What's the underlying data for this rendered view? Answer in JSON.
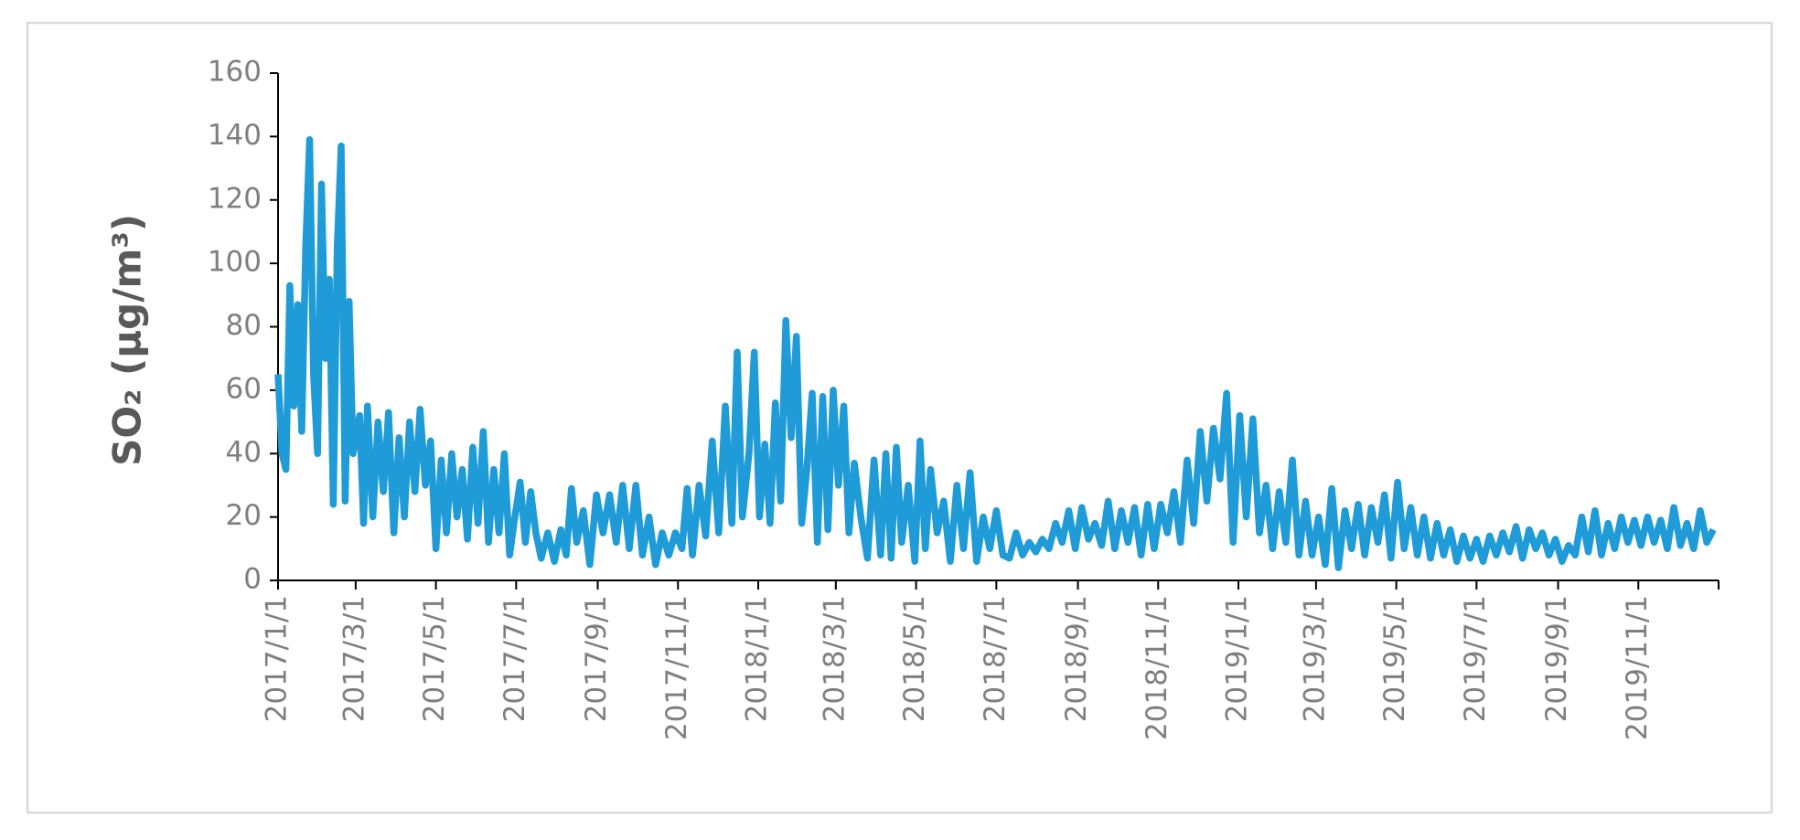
{
  "chart_data": {
    "type": "line",
    "y_label": "SO₂ (μg/m³)",
    "ylim": [
      0,
      160
    ],
    "yticks": [
      0,
      20,
      40,
      60,
      80,
      100,
      120,
      140,
      160
    ],
    "xlim": [
      "2017/1/1",
      "2020/1/1"
    ],
    "xticks": [
      "2017/1/1",
      "2017/3/1",
      "2017/5/1",
      "2017/7/1",
      "2017/9/1",
      "2017/11/1",
      "2018/1/1",
      "2018/3/1",
      "2018/5/1",
      "2018/7/1",
      "2018/9/1",
      "2018/11/1",
      "2019/1/1",
      "2019/3/1",
      "2019/5/1",
      "2019/7/1",
      "2019/9/1",
      "2019/11/1"
    ],
    "x": [
      "2017/1/1",
      "2017/1/4",
      "2017/1/7",
      "2017/1/10",
      "2017/1/13",
      "2017/1/16",
      "2017/1/19",
      "2017/1/22",
      "2017/1/25",
      "2017/1/28",
      "2017/1/31",
      "2017/2/3",
      "2017/2/6",
      "2017/2/9",
      "2017/2/12",
      "2017/2/15",
      "2017/2/18",
      "2017/2/21",
      "2017/2/24",
      "2017/2/27",
      "2017/3/4",
      "2017/3/7",
      "2017/3/10",
      "2017/3/14",
      "2017/3/18",
      "2017/3/22",
      "2017/3/26",
      "2017/3/30",
      "2017/4/3",
      "2017/4/7",
      "2017/4/11",
      "2017/4/15",
      "2017/4/19",
      "2017/4/23",
      "2017/4/27",
      "2017/5/1",
      "2017/5/5",
      "2017/5/9",
      "2017/5/13",
      "2017/5/17",
      "2017/5/21",
      "2017/5/25",
      "2017/5/29",
      "2017/6/2",
      "2017/6/6",
      "2017/6/10",
      "2017/6/14",
      "2017/6/18",
      "2017/6/22",
      "2017/6/26",
      "2017/6/30",
      "2017/7/4",
      "2017/7/8",
      "2017/7/12",
      "2017/7/16",
      "2017/7/20",
      "2017/7/25",
      "2017/7/30",
      "2017/8/4",
      "2017/8/8",
      "2017/8/12",
      "2017/8/16",
      "2017/8/21",
      "2017/8/26",
      "2017/8/31",
      "2017/9/5",
      "2017/9/10",
      "2017/9/15",
      "2017/9/20",
      "2017/9/25",
      "2017/9/30",
      "2017/10/5",
      "2017/10/10",
      "2017/10/15",
      "2017/10/20",
      "2017/10/25",
      "2017/10/30",
      "2017/11/4",
      "2017/11/8",
      "2017/11/12",
      "2017/11/17",
      "2017/11/22",
      "2017/11/27",
      "2017/12/2",
      "2017/12/7",
      "2017/12/12",
      "2017/12/16",
      "2017/12/20",
      "2017/12/25",
      "2017/12/29",
      "2018/1/2",
      "2018/1/6",
      "2018/1/10",
      "2018/1/14",
      "2018/1/18",
      "2018/1/22",
      "2018/1/26",
      "2018/1/30",
      "2018/2/3",
      "2018/2/7",
      "2018/2/11",
      "2018/2/15",
      "2018/2/19",
      "2018/2/23",
      "2018/2/27",
      "2018/3/3",
      "2018/3/7",
      "2018/3/11",
      "2018/3/15",
      "2018/3/20",
      "2018/3/25",
      "2018/3/30",
      "2018/4/4",
      "2018/4/8",
      "2018/4/12",
      "2018/4/16",
      "2018/4/20",
      "2018/4/25",
      "2018/4/30",
      "2018/5/4",
      "2018/5/8",
      "2018/5/12",
      "2018/5/17",
      "2018/5/22",
      "2018/5/27",
      "2018/6/1",
      "2018/6/6",
      "2018/6/11",
      "2018/6/16",
      "2018/6/21",
      "2018/6/26",
      "2018/7/1",
      "2018/7/6",
      "2018/7/11",
      "2018/7/16",
      "2018/7/21",
      "2018/7/26",
      "2018/7/31",
      "2018/8/5",
      "2018/8/10",
      "2018/8/15",
      "2018/8/20",
      "2018/8/25",
      "2018/8/30",
      "2018/9/4",
      "2018/9/9",
      "2018/9/14",
      "2018/9/19",
      "2018/9/24",
      "2018/9/29",
      "2018/10/4",
      "2018/10/9",
      "2018/10/14",
      "2018/10/19",
      "2018/10/24",
      "2018/10/29",
      "2018/11/3",
      "2018/11/8",
      "2018/11/13",
      "2018/11/18",
      "2018/11/23",
      "2018/11/28",
      "2018/12/3",
      "2018/12/8",
      "2018/12/13",
      "2018/12/18",
      "2018/12/23",
      "2018/12/28",
      "2019/1/2",
      "2019/1/7",
      "2019/1/12",
      "2019/1/17",
      "2019/1/22",
      "2019/1/27",
      "2019/2/1",
      "2019/2/6",
      "2019/2/11",
      "2019/2/16",
      "2019/2/21",
      "2019/2/26",
      "2019/3/3",
      "2019/3/8",
      "2019/3/13",
      "2019/3/18",
      "2019/3/23",
      "2019/3/28",
      "2019/4/2",
      "2019/4/7",
      "2019/4/12",
      "2019/4/17",
      "2019/4/22",
      "2019/4/27",
      "2019/5/2",
      "2019/5/7",
      "2019/5/12",
      "2019/5/17",
      "2019/5/22",
      "2019/5/27",
      "2019/6/1",
      "2019/6/6",
      "2019/6/11",
      "2019/6/16",
      "2019/6/21",
      "2019/6/26",
      "2019/7/1",
      "2019/7/6",
      "2019/7/11",
      "2019/7/16",
      "2019/7/21",
      "2019/7/26",
      "2019/7/31",
      "2019/8/5",
      "2019/8/10",
      "2019/8/15",
      "2019/8/20",
      "2019/8/25",
      "2019/8/30",
      "2019/9/4",
      "2019/9/9",
      "2019/9/14",
      "2019/9/19",
      "2019/9/24",
      "2019/9/29",
      "2019/10/4",
      "2019/10/9",
      "2019/10/14",
      "2019/10/19",
      "2019/10/24",
      "2019/10/29",
      "2019/11/3",
      "2019/11/8",
      "2019/11/13",
      "2019/11/18",
      "2019/11/23",
      "2019/11/28",
      "2019/12/3",
      "2019/12/8",
      "2019/12/13",
      "2019/12/18",
      "2019/12/23",
      "2019/12/28"
    ],
    "series": [
      {
        "color": "#1f9bd7",
        "values": [
          65,
          40,
          35,
          93,
          55,
          87,
          47,
          105,
          139,
          65,
          40,
          125,
          70,
          95,
          24,
          105,
          137,
          25,
          88,
          40,
          52,
          18,
          55,
          20,
          50,
          28,
          53,
          15,
          45,
          20,
          50,
          28,
          54,
          30,
          44,
          10,
          38,
          15,
          40,
          20,
          35,
          13,
          42,
          18,
          47,
          12,
          35,
          15,
          40,
          8,
          20,
          31,
          12,
          28,
          15,
          7,
          15,
          6,
          16,
          8,
          29,
          12,
          22,
          5,
          27,
          15,
          27,
          12,
          30,
          10,
          30,
          8,
          20,
          5,
          15,
          8,
          15,
          10,
          29,
          8,
          30,
          14,
          44,
          15,
          55,
          18,
          72,
          20,
          40,
          72,
          20,
          43,
          18,
          56,
          25,
          82,
          45,
          77,
          18,
          35,
          59,
          12,
          58,
          16,
          60,
          30,
          55,
          15,
          37,
          20,
          7,
          38,
          8,
          40,
          7,
          42,
          12,
          30,
          6,
          44,
          10,
          35,
          15,
          25,
          6,
          30,
          10,
          34,
          6,
          20,
          10,
          22,
          8,
          7,
          15,
          8,
          12,
          9,
          13,
          10,
          18,
          12,
          22,
          10,
          23,
          13,
          18,
          11,
          25,
          10,
          22,
          12,
          23,
          8,
          24,
          10,
          24,
          15,
          28,
          12,
          38,
          18,
          47,
          25,
          48,
          32,
          59,
          12,
          52,
          20,
          51,
          15,
          30,
          10,
          28,
          12,
          38,
          8,
          25,
          8,
          20,
          5,
          29,
          4,
          22,
          10,
          24,
          8,
          23,
          12,
          27,
          7,
          31,
          10,
          23,
          8,
          20,
          7,
          18,
          8,
          16,
          6,
          14,
          7,
          13,
          6,
          14,
          8,
          15,
          9,
          17,
          7,
          16,
          10,
          15,
          8,
          13,
          6,
          11,
          8,
          20,
          9,
          22,
          8,
          18,
          10,
          20,
          12,
          19,
          11,
          20,
          12,
          19,
          10,
          23,
          11,
          18,
          10,
          22,
          12,
          16
        ]
      }
    ]
  }
}
